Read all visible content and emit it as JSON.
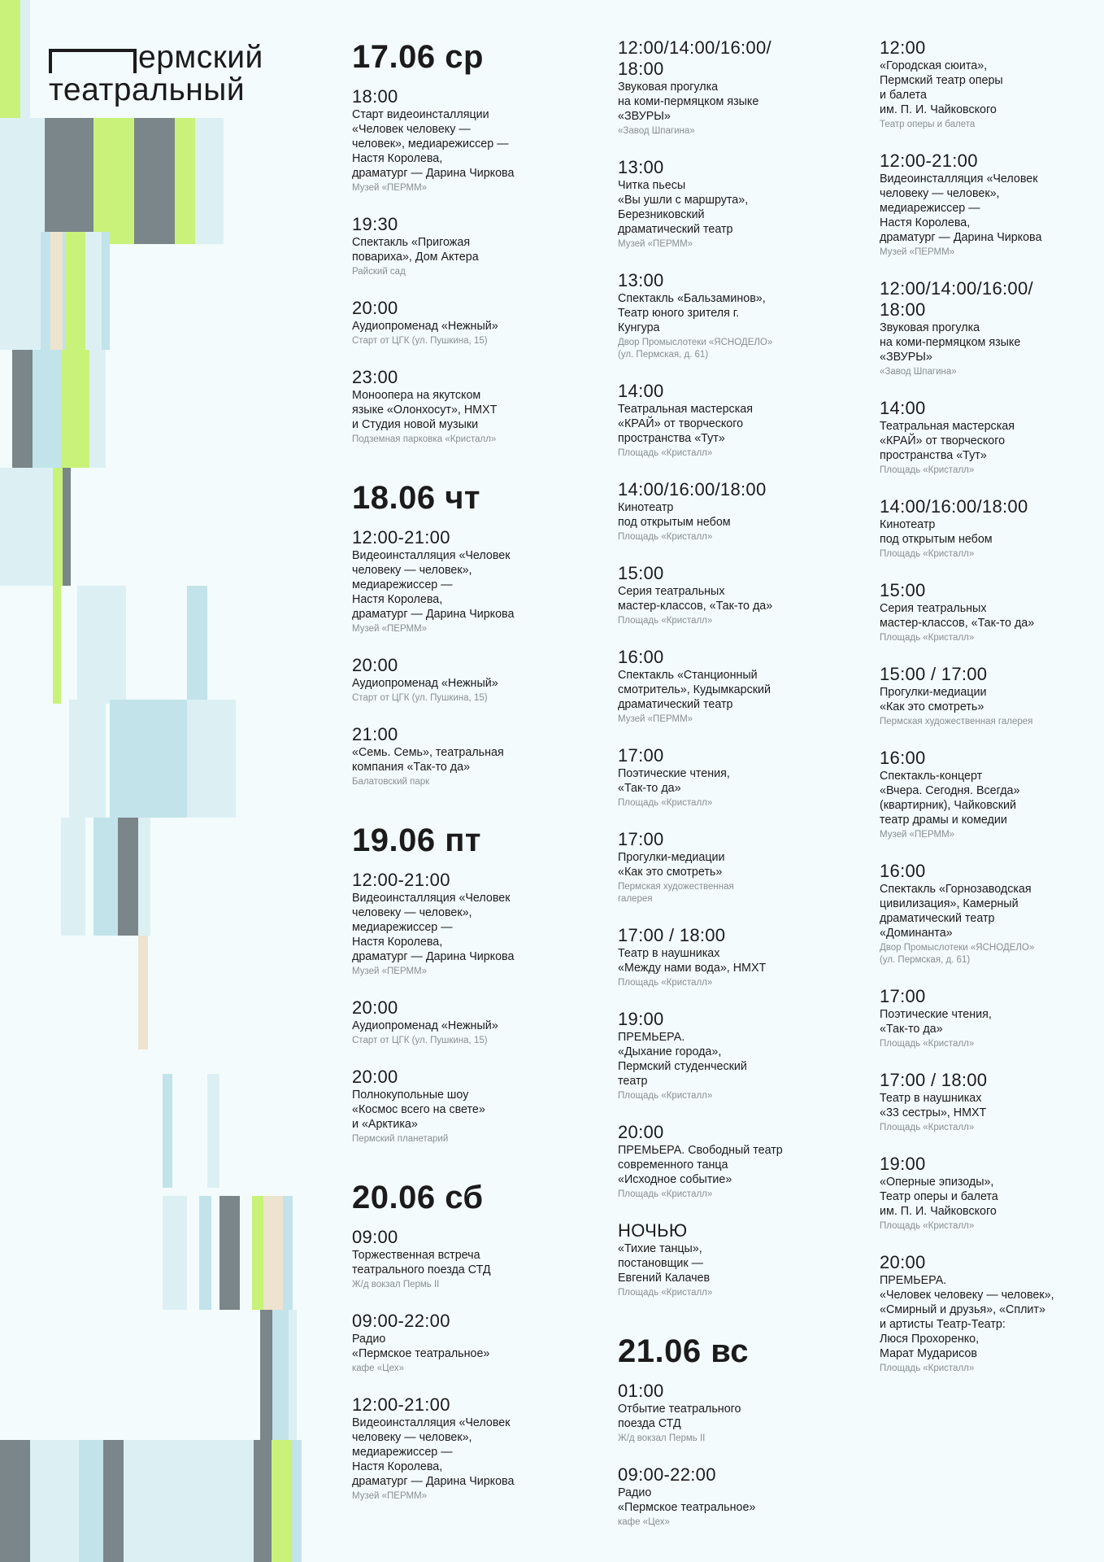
{
  "logo": {
    "line1": "ермский",
    "line2": "театральный"
  },
  "colors": {
    "lime": "#c9f27a",
    "grey": "#7b868a",
    "light_blue": "#c2e3ea",
    "pale_blue": "#dcf0f4",
    "beige": "#eee3cf"
  },
  "columns": [
    {
      "days": [
        {
          "title": "17.06 ср",
          "events": [
            {
              "time": "18:00",
              "desc": "Старт видеоинсталляции\n«Человек человеку —\nчеловек», медиарежиссер —\nНастя Королева,\nдраматург — Дарина Чиркова",
              "place": "Музей «ПЕРММ»"
            },
            {
              "time": "19:30",
              "desc": "Спектакль «Пригожая\nповариха», Дом Актера",
              "place": "Райский сад"
            },
            {
              "time": "20:00",
              "desc": "Аудиопроменад «Нежный»",
              "place": "Старт от ЦГК (ул. Пушкина, 15)"
            },
            {
              "time": "23:00",
              "desc": "Моноопера на якутском\nязыке «Олонхосут», НМХТ\nи Студия новой музыки",
              "place": "Подземная парковка «Кристалл»"
            }
          ]
        },
        {
          "title": "18.06 чт",
          "events": [
            {
              "time": "12:00-21:00",
              "desc": "Видеоинсталляция «Человек\nчеловеку — человек»,\nмедиарежиссер —\nНастя Королева,\nдраматург — Дарина Чиркова",
              "place": "Музей «ПЕРММ»"
            },
            {
              "time": "20:00",
              "desc": "Аудиопроменад «Нежный»",
              "place": "Старт от ЦГК (ул. Пушкина, 15)"
            },
            {
              "time": "21:00",
              "desc": "«Семь. Семь», театральная\nкомпания «Так-то да»",
              "place": "Балатовский парк"
            }
          ]
        },
        {
          "title": "19.06 пт",
          "events": [
            {
              "time": "12:00-21:00",
              "desc": "Видеоинсталляция «Человек\nчеловеку — человек»,\nмедиарежиссер —\nНастя Королева,\nдраматург — Дарина Чиркова",
              "place": "Музей «ПЕРММ»"
            },
            {
              "time": "20:00",
              "desc": "Аудиопроменад «Нежный»",
              "place": "Старт от ЦГК (ул. Пушкина, 15)"
            },
            {
              "time": "20:00",
              "desc": "Полнокупольные шоу\n«Космос всего на свете»\nи «Арктика»",
              "place": "Пермский планетарий"
            }
          ]
        },
        {
          "title": "20.06 сб",
          "events": [
            {
              "time": "09:00",
              "desc": "Торжественная встреча\nтеатрального поезда СТД",
              "place": "Ж/д вокзал Пермь II"
            },
            {
              "time": "09:00-22:00",
              "desc": "Радио\n«Пермское театральное»",
              "place": "кафе «Цех»"
            },
            {
              "time": "12:00-21:00",
              "desc": "Видеоинсталляция «Человек\nчеловеку — человек»,\nмедиарежиссер —\nНастя Королева,\nдраматург — Дарина Чиркова",
              "place": "Музей «ПЕРММ»"
            }
          ]
        }
      ]
    },
    {
      "days": [
        {
          "title": "",
          "events": [
            {
              "time": "12:00/14:00/16:00/\n18:00",
              "desc": "Звуковая прогулка\nна коми-пермяцком языке\n«ЗВУРЫ»",
              "place": "«Завод Шпагина»"
            },
            {
              "time": "13:00",
              "desc": "Читка пьесы\n«Вы ушли с маршрута»,\nБерезниковский\nдраматический театр",
              "place": "Музей «ПЕРММ»"
            },
            {
              "time": "13:00",
              "desc": "Спектакль «Бальзаминов»,\nТеатр юного зрителя г.\nКунгура",
              "place": "Двор Промыслотеки «ЯСНОДЕЛО»\n(ул. Пермская, д. 61)"
            },
            {
              "time": "14:00",
              "desc": "Театральная мастерская\n«КРАЙ» от творческого\nпространства «Тут»",
              "place": "Площадь «Кристалл»"
            },
            {
              "time": "14:00/16:00/18:00",
              "desc": "Кинотеатр\nпод открытым небом",
              "place": "Площадь «Кристалл»"
            },
            {
              "time": "15:00",
              "desc": "Серия театральных\nмастер-классов, «Так-то да»",
              "place": "Площадь «Кристалл»"
            },
            {
              "time": "16:00",
              "desc": "Спектакль «Станционный\nсмотритель», Кудымкарский\nдраматический театр",
              "place": "Музей «ПЕРММ»"
            },
            {
              "time": "17:00",
              "desc": "Поэтические чтения,\n«Так-то да»",
              "place": "Площадь «Кристалл»"
            },
            {
              "time": "17:00",
              "desc": "Прогулки-медиации\n«Как это смотреть»",
              "place": "Пермская художественная\nгалерея"
            },
            {
              "time": "17:00 / 18:00",
              "desc": "Театр в наушниках\n«Между нами вода», НМХТ",
              "place": "Площадь «Кристалл»"
            },
            {
              "time": "19:00",
              "desc": "ПРЕМЬЕРА.\n«Дыхание города»,\nПермский студенческий\nтеатр",
              "place": "Площадь «Кристалл»"
            },
            {
              "time": "20:00",
              "desc": "ПРЕМЬЕРА. Свободный театр\nсовременного танца\n«Исходное событие»",
              "place": "Площадь «Кристалл»"
            },
            {
              "time": "НОЧЬЮ",
              "desc": "«Тихие танцы»,\nпостановщик —\nЕвгений Калачев",
              "place": "Площадь «Кристалл»"
            }
          ]
        },
        {
          "title": "21.06 вс",
          "events": [
            {
              "time": "01:00",
              "desc": "Отбытие театрального\nпоезда СТД",
              "place": "Ж/д вокзал Пермь II"
            },
            {
              "time": "09:00-22:00",
              "desc": "Радио\n«Пермское театральное»",
              "place": "кафе «Цех»"
            }
          ]
        }
      ]
    },
    {
      "days": [
        {
          "title": "",
          "events": [
            {
              "time": "12:00",
              "desc": "«Городская сюита»,\nПермский театр оперы\nи балета\nим. П. И. Чайковского",
              "place": "Театр оперы и балета"
            },
            {
              "time": "12:00-21:00",
              "desc": "Видеоинсталляция «Человек\nчеловеку — человек»,\nмедиарежиссер —\nНастя Королева,\nдраматург — Дарина Чиркова",
              "place": "Музей «ПЕРММ»"
            },
            {
              "time": "12:00/14:00/16:00/\n18:00",
              "desc": "Звуковая прогулка\nна коми-пермяцком языке\n«ЗВУРЫ»",
              "place": "«Завод Шпагина»"
            },
            {
              "time": "14:00",
              "desc": "Театральная мастерская\n«КРАЙ» от творческого\nпространства «Тут»",
              "place": "Площадь «Кристалл»"
            },
            {
              "time": "14:00/16:00/18:00",
              "desc": "Кинотеатр\nпод открытым небом",
              "place": "Площадь «Кристалл»"
            },
            {
              "time": "15:00",
              "desc": "Серия театральных\nмастер-классов, «Так-то да»",
              "place": "Площадь «Кристалл»"
            },
            {
              "time": "15:00 / 17:00",
              "desc": "Прогулки-медиации\n«Как это смотреть»",
              "place": "Пермская художественная галерея"
            },
            {
              "time": "16:00",
              "desc": "Спектакль-концерт\n«Вчера. Сегодня. Всегда»\n(квартирник), Чайковский\nтеатр драмы и комедии",
              "place": "Музей «ПЕРММ»"
            },
            {
              "time": "16:00",
              "desc": "Спектакль «Горнозаводская\nцивилизация», Камерный\nдраматический театр\n«Доминанта»",
              "place": "Двор Промыслотеки «ЯСНОДЕЛО»\n(ул. Пермская, д. 61)"
            },
            {
              "time": "17:00",
              "desc": "Поэтические чтения,\n«Так-то да»",
              "place": "Площадь «Кристалл»"
            },
            {
              "time": "17:00 / 18:00",
              "desc": "Театр в наушниках\n«33 сестры», НМХТ",
              "place": "Площадь «Кристалл»"
            },
            {
              "time": "19:00",
              "desc": "«Оперные эпизоды»,\nТеатр оперы и балета\nим. П. И. Чайковского",
              "place": "Площадь «Кристалл»"
            },
            {
              "time": "20:00",
              "desc": "ПРЕМЬЕРА.\n«Человек человеку — человек»,\n«Смирный и друзья», «Сплит»\nи артисты Театр-Театр:\nЛюся Прохоренко,\nМарат Мударисов",
              "place": "Площадь «Кристалл»"
            }
          ]
        }
      ]
    }
  ]
}
